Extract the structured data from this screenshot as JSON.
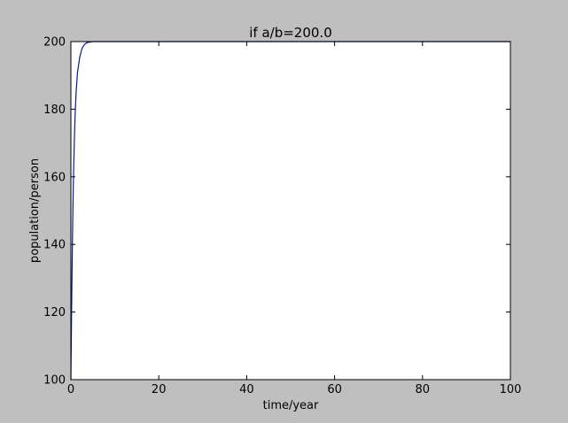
{
  "chart_data": {
    "type": "line",
    "title": "if a/b=200.0",
    "xlabel": "time/year",
    "ylabel": "population/person",
    "xlim": [
      0,
      100
    ],
    "ylim": [
      100,
      200
    ],
    "xticks": [
      0,
      20,
      40,
      60,
      80,
      100
    ],
    "yticks": [
      100,
      120,
      140,
      160,
      180,
      200
    ],
    "grid": false,
    "series": [
      {
        "color": "#0b1c8c",
        "x": [
          0,
          0.1,
          0.2,
          0.3,
          0.4,
          0.5,
          0.6,
          0.8,
          1.0,
          1.2,
          1.5,
          2.0,
          2.5,
          3.0,
          3.5,
          4.0,
          5.0,
          10,
          20,
          40,
          60,
          80,
          100
        ],
        "y": [
          100,
          113.0,
          125.0,
          135.7,
          145.1,
          153.3,
          160.4,
          171.5,
          179.6,
          185.2,
          190.8,
          195.3,
          197.9,
          199.0,
          199.6,
          199.8,
          200.0,
          200.0,
          200.0,
          200.0,
          200.0,
          200.0,
          200.0
        ]
      }
    ]
  },
  "colors": {
    "figure_background": "#bfbfbf",
    "axes_background": "#ffffff",
    "line": "#0b1c8c"
  }
}
